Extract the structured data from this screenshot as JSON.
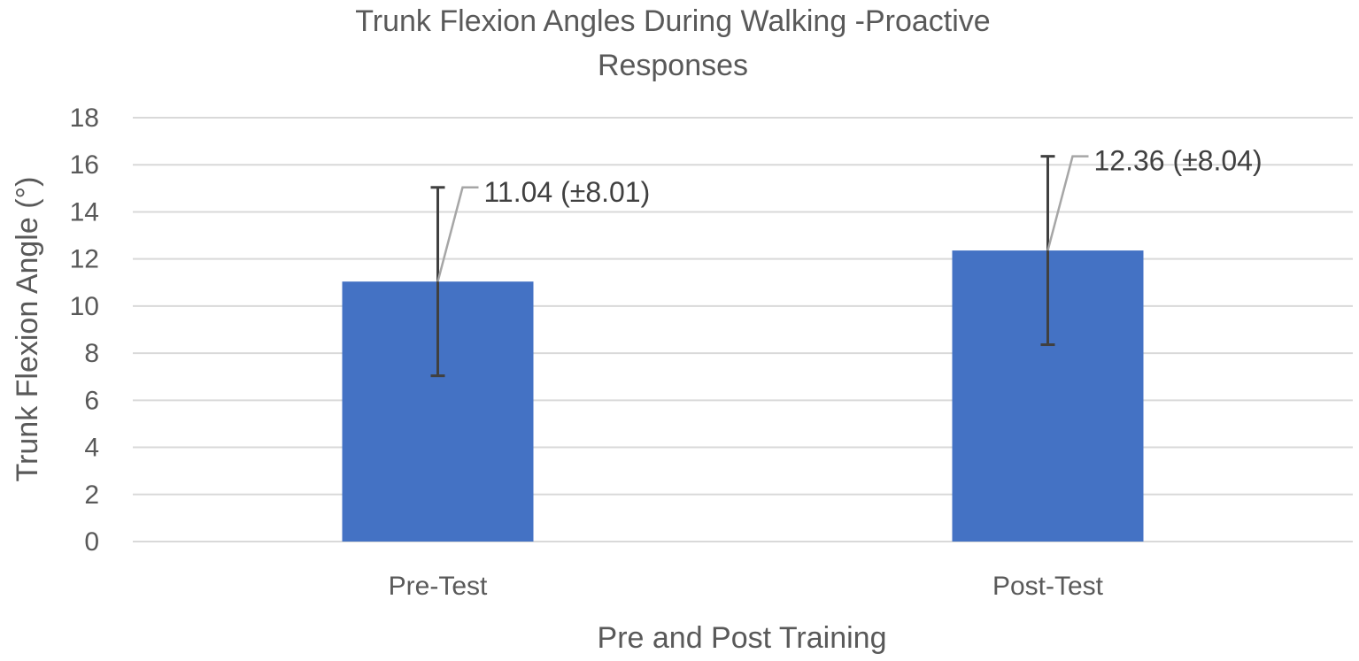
{
  "chart_data": {
    "type": "bar",
    "title": "Trunk Flexion Angles During Walking -Proactive Responses",
    "title_lines": [
      "Trunk Flexion Angles During Walking -Proactive",
      "Responses"
    ],
    "xlabel": "Pre and Post Training",
    "ylabel": "Trunk Flexion Angle (°)",
    "ylim": [
      0,
      18
    ],
    "yticks": [
      0,
      2,
      4,
      6,
      8,
      10,
      12,
      14,
      16,
      18
    ],
    "grid": true,
    "categories": [
      "Pre-Test",
      "Post-Test"
    ],
    "values": [
      11.04,
      12.36
    ],
    "error_plus": [
      4.0,
      4.0
    ],
    "error_minus": [
      4.0,
      4.0
    ],
    "data_labels": [
      "11.04 (±8.01)",
      "12.36 (±8.04)"
    ],
    "bar_color": "#4472c4"
  }
}
